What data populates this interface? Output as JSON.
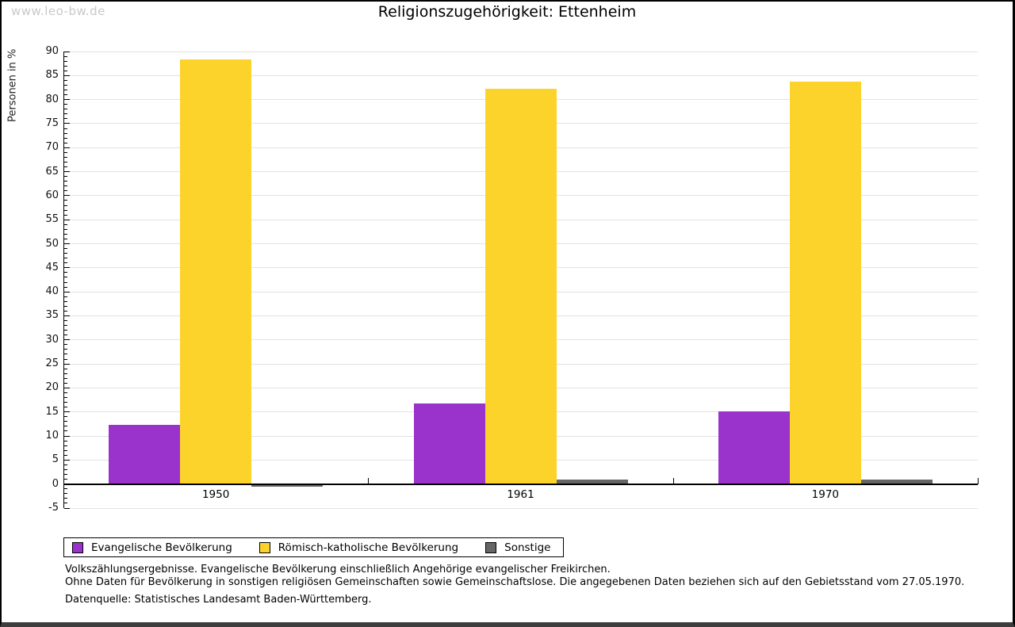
{
  "watermark": "www.leo-bw.de",
  "title": "Religionszugehörigkeit: Ettenheim",
  "chart_data": {
    "type": "bar",
    "title": "Religionszugehörigkeit: Ettenheim",
    "xlabel": "",
    "ylabel": "Personen in %",
    "categories": [
      "1950",
      "1961",
      "1970"
    ],
    "series": [
      {
        "name": "Evangelische Bevölkerung",
        "color": "#9933CC",
        "values": [
          12.3,
          16.8,
          15.2
        ]
      },
      {
        "name": "Römisch-katholische Bevölkerung",
        "color": "#FCD32B",
        "values": [
          88.3,
          82.3,
          83.8
        ]
      },
      {
        "name": "Sonstige",
        "color": "#666666",
        "values": [
          -0.6,
          1.0,
          1.0
        ]
      }
    ],
    "ylim": [
      -5,
      90
    ],
    "ytick_major_step": 5,
    "ytick_minor_step": 1,
    "grid": true,
    "gridline_color": "#e2e2e2",
    "legend_position": "bottom"
  },
  "footnotes": {
    "line1": "Volkszählungsergebnisse. Evangelische Bevölkerung einschließlich Angehörige evangelischer Freikirchen.",
    "line2": "Ohne Daten für Bevölkerung in sonstigen religiösen Gemeinschaften sowie Gemeinschaftslose. Die angegebenen Daten beziehen sich auf den Gebietsstand vom 27.05.1970.",
    "source": "Datenquelle: Statistisches Landesamt Baden-Württemberg."
  }
}
